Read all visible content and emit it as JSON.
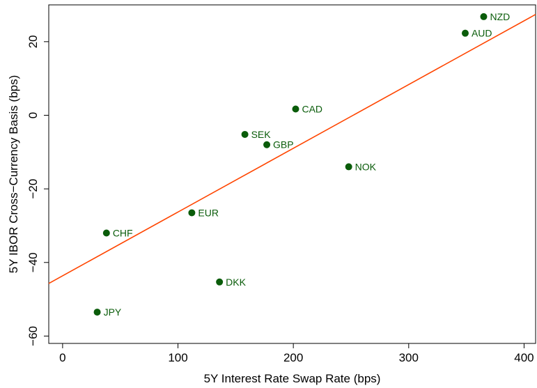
{
  "chart_data": {
    "type": "scatter",
    "xlabel": "5Y Interest Rate Swap Rate (bps)",
    "ylabel": "5Y IBOR Cross−Currency Basis (bps)",
    "xlim": [
      -12,
      410
    ],
    "ylim": [
      -62,
      30
    ],
    "xticks": [
      0,
      100,
      200,
      300,
      400
    ],
    "xtick_labels": [
      "0",
      "100",
      "200",
      "300",
      "400"
    ],
    "yticks": [
      -60,
      -40,
      -20,
      0,
      20
    ],
    "ytick_labels": [
      "−60",
      "−40",
      "−20",
      "0",
      "20"
    ],
    "grid": false,
    "legend": "none",
    "point_color": "#0a5c0a",
    "line_color": "#ff4500",
    "points": [
      {
        "label": "NZD",
        "x": 365,
        "y": 26.8
      },
      {
        "label": "AUD",
        "x": 349,
        "y": 22.3
      },
      {
        "label": "CAD",
        "x": 202,
        "y": 1.7
      },
      {
        "label": "SEK",
        "x": 158,
        "y": -5.2
      },
      {
        "label": "GBP",
        "x": 177,
        "y": -8.0
      },
      {
        "label": "NOK",
        "x": 248,
        "y": -14.0
      },
      {
        "label": "EUR",
        "x": 112,
        "y": -26.5
      },
      {
        "label": "CHF",
        "x": 38,
        "y": -32.0
      },
      {
        "label": "DKK",
        "x": 136,
        "y": -45.3
      },
      {
        "label": "JPY",
        "x": 30,
        "y": -53.5
      }
    ],
    "fit_line": {
      "x0": -12,
      "y0": -45.7,
      "x1": 410,
      "y1": 27.4
    }
  }
}
